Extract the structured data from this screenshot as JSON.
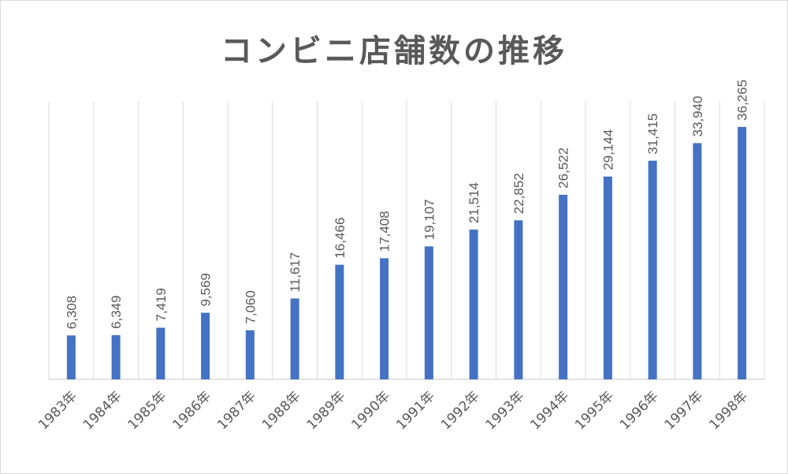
{
  "chart_data": {
    "type": "bar",
    "title": "コンビニ店舗数の推移",
    "xlabel": "",
    "ylabel": "",
    "ylim": [
      0,
      40000
    ],
    "grid": "vertical",
    "bar_color": "#4472c4",
    "categories": [
      "1983年",
      "1984年",
      "1985年",
      "1986年",
      "1987年",
      "1988年",
      "1989年",
      "1990年",
      "1991年",
      "1992年",
      "1993年",
      "1994年",
      "1995年",
      "1996年",
      "1997年",
      "1998年"
    ],
    "values": [
      6308,
      6349,
      7419,
      9569,
      7060,
      11617,
      16466,
      17408,
      19107,
      21514,
      22852,
      26522,
      29144,
      31415,
      33940,
      36265
    ],
    "value_labels": [
      "6,308",
      "6,349",
      "7,419",
      "9,569",
      "7,060",
      "11,617",
      "16,466",
      "17,408",
      "19,107",
      "21,514",
      "22,852",
      "26,522",
      "29,144",
      "31,415",
      "33,940",
      "36,265"
    ]
  }
}
